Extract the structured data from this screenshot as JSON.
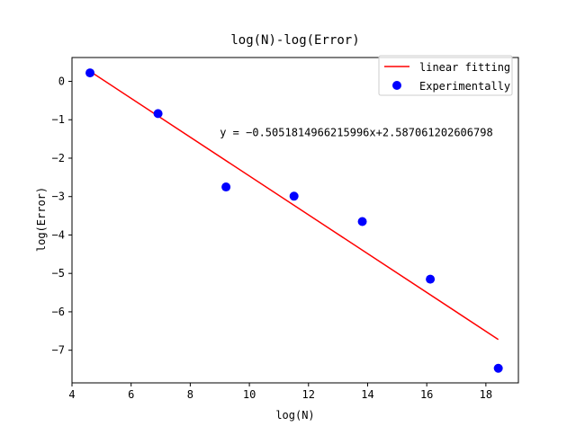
{
  "chart_data": {
    "type": "scatter",
    "title": "log(N)-log(Error)",
    "xlabel": "log(N)",
    "ylabel": "log(Error)",
    "xlim": [
      4.0,
      19.1
    ],
    "ylim": [
      -7.85,
      0.62
    ],
    "x_ticks": [
      4,
      6,
      8,
      10,
      12,
      14,
      16,
      18
    ],
    "y_ticks": [
      0,
      -1,
      -2,
      -3,
      -4,
      -5,
      -6,
      -7
    ],
    "x_tick_labels": [
      "4",
      "6",
      "8",
      "10",
      "12",
      "14",
      "16",
      "18"
    ],
    "y_tick_labels": [
      "0",
      "−1",
      "−2",
      "−3",
      "−4",
      "−5",
      "−6",
      "−7"
    ],
    "grid": false,
    "legend_position": "top-right",
    "series": [
      {
        "name": "linear fitting",
        "kind": "line",
        "color": "#ff0000",
        "x": [
          4.61,
          18.42
        ],
        "y": [
          0.26,
          -6.72
        ]
      },
      {
        "name": "Experimentally",
        "kind": "scatter",
        "color": "#0000ff",
        "x": [
          4.61,
          6.91,
          9.21,
          11.51,
          13.82,
          16.12,
          18.42
        ],
        "y": [
          0.22,
          -0.84,
          -2.75,
          -2.99,
          -3.65,
          -5.15,
          -7.47
        ]
      }
    ],
    "annotation": {
      "text": "y = −0.5051814966215996x+2.587061202606798",
      "x": 9.0,
      "y": -1.43
    }
  }
}
